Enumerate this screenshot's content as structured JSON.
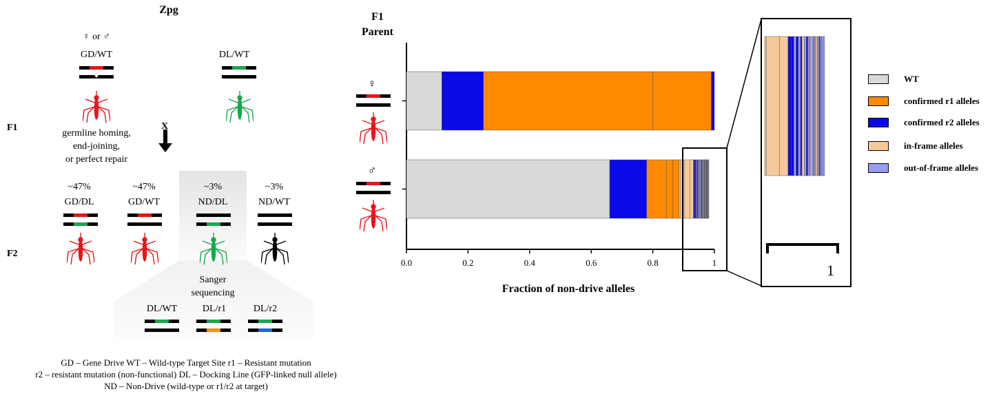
{
  "diagram": {
    "title": "Zpg",
    "sex_symbol_female_or_male": "♀ or ♂",
    "parent_gd": "GD/WT",
    "parent_dl": "DL/WT",
    "row_f1": "F1",
    "row_f2": "F2",
    "cross": "X",
    "process_text": [
      "germline homing,",
      "end-joining,",
      "or perfect repair"
    ],
    "offspring": [
      {
        "pct": "~47%",
        "genotype": "GD/DL"
      },
      {
        "pct": "~47%",
        "genotype": "GD/WT"
      },
      {
        "pct": "~3%",
        "genotype": "ND/DL"
      },
      {
        "pct": "~3%",
        "genotype": "ND/WT"
      }
    ],
    "sequencing_text": [
      "Sanger",
      "sequencing"
    ],
    "seq_results": [
      "DL/WT",
      "DL/r1",
      "DL/r2"
    ],
    "footnotes": [
      "GD – Gene Drive   WT – Wild-type Target Site   r1 – Resistant mutation",
      "r2 – resistant mutation (non-functional)   DL – Docking Line (GFP-linked null allele)",
      "ND – Non-Drive (wild-type or r1/r2 at target)"
    ]
  },
  "colors": {
    "drive_red": "#e8141c",
    "docking_green": "#16a84d",
    "r1_orange": "#ff8a00",
    "r2_blue": "#1d5fe6",
    "wt_gray": "#d9d9d9",
    "confirmed_r2": "#0a0ae8",
    "in_frame": "#f7c99a",
    "out_of_frame": "#9b9bf2"
  },
  "chart_data": {
    "type": "bar",
    "orientation": "horizontal stacked",
    "y_title": [
      "F1",
      "Parent"
    ],
    "parents": [
      {
        "symbol": "♀",
        "sex": "female"
      },
      {
        "symbol": "♂",
        "sex": "male"
      }
    ],
    "xlabel": "Fraction of non-drive alleles",
    "xlim": [
      0,
      1
    ],
    "ticks": [
      "0.0",
      "0.2",
      "0.4",
      "0.6",
      "0.8",
      "1"
    ],
    "tick_values": [
      0,
      0.2,
      0.4,
      0.6,
      0.8,
      1
    ],
    "legend": [
      {
        "key": "wt",
        "label": "WT",
        "color": "#d9d9d9"
      },
      {
        "key": "r1",
        "label": "confirmed r1 alleles",
        "color": "#ff8a00"
      },
      {
        "key": "r2",
        "label": "confirmed r2 alleles",
        "color": "#0a0ae8"
      },
      {
        "key": "inframe",
        "label": "in-frame alleles",
        "color": "#f7c99a"
      },
      {
        "key": "outframe",
        "label": "out-of-frame alleles",
        "color": "#9b9bf2"
      }
    ],
    "series": [
      {
        "name": "♀",
        "segments": [
          [
            "wt",
            0.115
          ],
          [
            "r2",
            0.135
          ],
          [
            "r1",
            0.55
          ],
          [
            "r1",
            0.19
          ],
          [
            "r2",
            0.01
          ]
        ]
      },
      {
        "name": "♂",
        "segments": [
          [
            "wt",
            0.66
          ],
          [
            "r2",
            0.12
          ],
          [
            "r1",
            0.065
          ],
          [
            "r1",
            0.02
          ],
          [
            "r1",
            0.02
          ],
          [
            "inframe",
            0.005
          ],
          [
            "inframe",
            0.012
          ],
          [
            "inframe",
            0.018
          ],
          [
            "inframe",
            0.012
          ],
          [
            "r2",
            0.004
          ],
          [
            "r2",
            0.004
          ],
          [
            "outframe",
            0.003
          ],
          [
            "r2",
            0.003
          ],
          [
            "outframe",
            0.003
          ],
          [
            "r2",
            0.002
          ],
          [
            "inframe",
            0.003
          ],
          [
            "outframe",
            0.003
          ],
          [
            "r2",
            0.002
          ],
          [
            "outframe",
            0.002
          ],
          [
            "outframe",
            0.002
          ],
          [
            "inframe",
            0.002
          ],
          [
            "outframe",
            0.002
          ],
          [
            "r1",
            0.001
          ],
          [
            "outframe",
            0.002
          ],
          [
            "inframe",
            0.002
          ],
          [
            "outframe",
            0.002
          ],
          [
            "outframe",
            0.001
          ],
          [
            "r2",
            0.001
          ],
          [
            "outframe",
            0.002
          ],
          [
            "outframe",
            0.002
          ],
          [
            "outframe",
            0.002
          ]
        ]
      }
    ],
    "zoom_axis_label": "1"
  }
}
